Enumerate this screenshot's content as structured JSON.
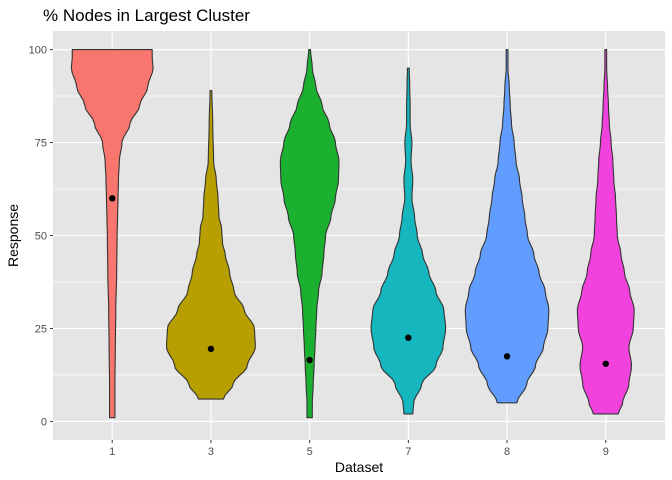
{
  "chart_data": {
    "type": "violin",
    "title": "% Nodes in Largest Cluster",
    "xlabel": "Dataset",
    "ylabel": "Response",
    "categories": [
      "1",
      "3",
      "5",
      "7",
      "8",
      "9"
    ],
    "ylim": [
      -5,
      105
    ],
    "yticks": [
      0,
      25,
      50,
      75,
      100
    ],
    "grid": true,
    "legend": "none",
    "panel_background": "#e5e5e5",
    "grid_color": "#ffffff",
    "outline_color": "#333333",
    "point_color": "#000000",
    "series": [
      {
        "category": "1",
        "color": "#F8766D",
        "point": 60,
        "min": 1,
        "max": 100,
        "profile": [
          [
            1,
            0.06
          ],
          [
            5,
            0.06
          ],
          [
            10,
            0.06
          ],
          [
            20,
            0.07
          ],
          [
            30,
            0.08
          ],
          [
            40,
            0.1
          ],
          [
            50,
            0.11
          ],
          [
            55,
            0.12
          ],
          [
            60,
            0.13
          ],
          [
            65,
            0.14
          ],
          [
            70,
            0.16
          ],
          [
            75,
            0.22
          ],
          [
            80,
            0.4
          ],
          [
            85,
            0.62
          ],
          [
            90,
            0.8
          ],
          [
            95,
            0.92
          ],
          [
            98,
            0.9
          ],
          [
            100,
            0.9
          ]
        ]
      },
      {
        "category": "3",
        "color": "#B79F00",
        "point": 19.5,
        "min": 6,
        "max": 89,
        "profile": [
          [
            6,
            0.28
          ],
          [
            10,
            0.5
          ],
          [
            15,
            0.82
          ],
          [
            20,
            1.0
          ],
          [
            25,
            0.98
          ],
          [
            30,
            0.75
          ],
          [
            35,
            0.52
          ],
          [
            40,
            0.42
          ],
          [
            45,
            0.32
          ],
          [
            48,
            0.26
          ],
          [
            52,
            0.24
          ],
          [
            55,
            0.18
          ],
          [
            60,
            0.16
          ],
          [
            65,
            0.12
          ],
          [
            70,
            0.06
          ],
          [
            80,
            0.04
          ],
          [
            89,
            0.02
          ]
        ]
      },
      {
        "category": "5",
        "color": "#1BB02F",
        "point": 16.5,
        "min": 1,
        "max": 100,
        "profile": [
          [
            1,
            0.06
          ],
          [
            5,
            0.06
          ],
          [
            10,
            0.08
          ],
          [
            15,
            0.1
          ],
          [
            20,
            0.12
          ],
          [
            25,
            0.14
          ],
          [
            30,
            0.16
          ],
          [
            35,
            0.2
          ],
          [
            40,
            0.28
          ],
          [
            45,
            0.32
          ],
          [
            50,
            0.36
          ],
          [
            55,
            0.48
          ],
          [
            60,
            0.58
          ],
          [
            65,
            0.65
          ],
          [
            70,
            0.66
          ],
          [
            75,
            0.58
          ],
          [
            80,
            0.44
          ],
          [
            85,
            0.28
          ],
          [
            90,
            0.14
          ],
          [
            95,
            0.06
          ],
          [
            100,
            0.02
          ]
        ]
      },
      {
        "category": "7",
        "color": "#16B6BE",
        "point": 22.5,
        "min": 2,
        "max": 95,
        "profile": [
          [
            2,
            0.1
          ],
          [
            5,
            0.12
          ],
          [
            10,
            0.3
          ],
          [
            15,
            0.62
          ],
          [
            20,
            0.78
          ],
          [
            25,
            0.84
          ],
          [
            30,
            0.8
          ],
          [
            35,
            0.62
          ],
          [
            40,
            0.46
          ],
          [
            45,
            0.32
          ],
          [
            50,
            0.2
          ],
          [
            55,
            0.14
          ],
          [
            60,
            0.08
          ],
          [
            65,
            0.1
          ],
          [
            70,
            0.06
          ],
          [
            75,
            0.08
          ],
          [
            80,
            0.04
          ],
          [
            85,
            0.04
          ],
          [
            90,
            0.03
          ],
          [
            95,
            0.02
          ]
        ]
      },
      {
        "category": "8",
        "color": "#619CFF",
        "point": 17.5,
        "min": 5,
        "max": 100,
        "profile": [
          [
            5,
            0.22
          ],
          [
            10,
            0.44
          ],
          [
            15,
            0.64
          ],
          [
            20,
            0.82
          ],
          [
            25,
            0.92
          ],
          [
            30,
            0.94
          ],
          [
            35,
            0.86
          ],
          [
            40,
            0.72
          ],
          [
            45,
            0.6
          ],
          [
            50,
            0.46
          ],
          [
            55,
            0.4
          ],
          [
            60,
            0.34
          ],
          [
            65,
            0.28
          ],
          [
            70,
            0.2
          ],
          [
            75,
            0.16
          ],
          [
            80,
            0.1
          ],
          [
            85,
            0.07
          ],
          [
            90,
            0.05
          ],
          [
            95,
            0.02
          ],
          [
            100,
            0.02
          ]
        ]
      },
      {
        "category": "9",
        "color": "#F242DE",
        "point": 15.5,
        "min": 2,
        "max": 100,
        "profile": [
          [
            2,
            0.28
          ],
          [
            5,
            0.38
          ],
          [
            10,
            0.52
          ],
          [
            15,
            0.58
          ],
          [
            20,
            0.52
          ],
          [
            25,
            0.62
          ],
          [
            30,
            0.64
          ],
          [
            35,
            0.54
          ],
          [
            40,
            0.42
          ],
          [
            45,
            0.34
          ],
          [
            50,
            0.26
          ],
          [
            55,
            0.24
          ],
          [
            60,
            0.22
          ],
          [
            65,
            0.18
          ],
          [
            70,
            0.16
          ],
          [
            75,
            0.12
          ],
          [
            80,
            0.08
          ],
          [
            85,
            0.06
          ],
          [
            90,
            0.04
          ],
          [
            95,
            0.02
          ],
          [
            100,
            0.02
          ]
        ]
      }
    ]
  }
}
